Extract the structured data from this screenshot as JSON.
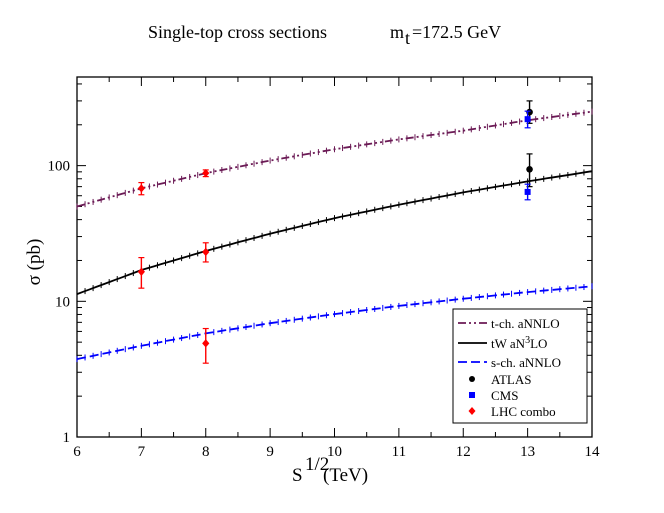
{
  "chart_data": {
    "type": "line",
    "title": "Single-top cross sections",
    "title_mass_symbol": "m",
    "title_mass_subscript": "t",
    "title_mass_value": "=172.5 GeV",
    "xlabel": "S",
    "xlabel_superscript": "1/2",
    "xlabel_unit": " (TeV)",
    "ylabel": "σ (pb)",
    "x_scale": "linear",
    "y_scale": "log",
    "xlim": [
      6,
      14
    ],
    "ylim": [
      1,
      450
    ],
    "x_ticks": [
      "6",
      "7",
      "8",
      "9",
      "10",
      "11",
      "12",
      "13",
      "14"
    ],
    "y_ticks": [
      {
        "value": 1,
        "label": "1"
      },
      {
        "value": 10,
        "label": "10"
      },
      {
        "value": 100,
        "label": "100"
      }
    ],
    "legend_position": "bottom-right",
    "series": [
      {
        "name": "t-ch. aNNLO",
        "legend_label": "t-ch.  aNNLO",
        "style": "dash-dot-dot",
        "color": "#6b1a55",
        "x": [
          6,
          7,
          8,
          9,
          10,
          11,
          12,
          13,
          14
        ],
        "values": [
          50,
          68,
          88,
          109,
          132,
          156,
          181,
          216,
          250
        ]
      },
      {
        "name": "tW aN3LO",
        "legend_label_main": "tW    aN",
        "legend_label_sup": "3",
        "legend_label_tail": "LO",
        "style": "solid",
        "color": "#000000",
        "x": [
          6,
          7,
          8,
          9,
          10,
          11,
          12,
          13,
          14
        ],
        "values": [
          11.3,
          17,
          23.5,
          31.5,
          41,
          51.5,
          63.5,
          76.5,
          91
        ]
      },
      {
        "name": "s-ch. aNNLO",
        "legend_label": "s-ch.  aNNLO",
        "style": "dashed",
        "color": "#0000ff",
        "x": [
          6,
          7,
          8,
          9,
          10,
          11,
          12,
          13,
          14
        ],
        "values": [
          3.75,
          4.7,
          5.8,
          6.9,
          8.05,
          9.25,
          10.45,
          11.7,
          12.9
        ]
      }
    ],
    "measurements": [
      {
        "name": "ATLAS",
        "marker": "circle",
        "color": "#000000",
        "points": [
          {
            "x": 13.03,
            "y": 248,
            "y_low": 205,
            "y_high": 300
          },
          {
            "x": 13.03,
            "y": 94,
            "y_low": 70,
            "y_high": 122
          }
        ]
      },
      {
        "name": "CMS",
        "marker": "square",
        "color": "#0000ff",
        "points": [
          {
            "x": 13.0,
            "y": 220,
            "y_low": 190,
            "y_high": 252
          },
          {
            "x": 13.0,
            "y": 64,
            "y_low": 56,
            "y_high": 73
          }
        ]
      },
      {
        "name": "LHC combo",
        "marker": "diamond",
        "color": "#ff0000",
        "points": [
          {
            "x": 7,
            "y": 68,
            "y_low": 61,
            "y_high": 75
          },
          {
            "x": 8,
            "y": 88,
            "y_low": 83,
            "y_high": 93
          },
          {
            "x": 7,
            "y": 16.5,
            "y_low": 12.5,
            "y_high": 21
          },
          {
            "x": 8,
            "y": 23.1,
            "y_low": 19.5,
            "y_high": 27
          },
          {
            "x": 8,
            "y": 4.9,
            "y_low": 3.5,
            "y_high": 6.3
          }
        ]
      }
    ]
  }
}
